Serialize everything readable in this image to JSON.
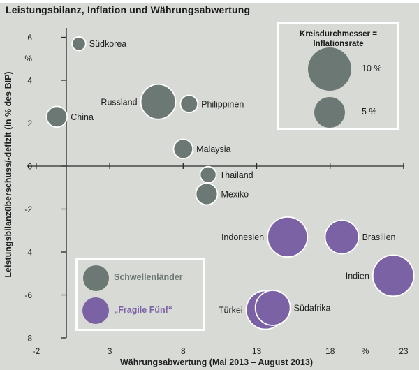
{
  "page": {
    "title": "Leistungsbilanz, Inflation und Währungsabwertung"
  },
  "colors": {
    "background": "#d8dad6",
    "bubble_gray": "#6c7873",
    "bubble_purple": "#7b62a5",
    "axis": "#2a2a2a",
    "text": "#1f1f1f",
    "legend_border": "#ffffff"
  },
  "chart_data": {
    "type": "scatter",
    "title": "Leistungsbilanz, Inflation und Währungsabwertung",
    "xlabel": "Währungsabwertung (Mai 2013 – August 2013)",
    "ylabel": "Leistungsbilanzüberschuss/-defizit (in % des BIP)",
    "x_unit": "%",
    "y_unit": "%",
    "xticks": [
      -2,
      3,
      8,
      13,
      18,
      23
    ],
    "yticks": [
      6,
      4,
      2,
      0,
      -2,
      -4,
      -6,
      -8
    ],
    "xlim": [
      -2.7,
      23.1
    ],
    "ylim": [
      -8,
      6.4
    ],
    "grid": false,
    "bubble_size_meaning": "Kreisdurchmesser = Inflationsrate (in %)",
    "series": [
      {
        "name": "Schwellenländer",
        "color": "#6c7873",
        "points": [
          {
            "label": "Südkorea",
            "x": 0.9,
            "y": 5.7,
            "inflation": 1.0,
            "label_side": "right"
          },
          {
            "label": "China",
            "x": -0.6,
            "y": 2.3,
            "inflation": 2.3,
            "label_side": "right"
          },
          {
            "label": "Russland",
            "x": 6.3,
            "y": 3.0,
            "inflation": 6.5,
            "label_side": "left"
          },
          {
            "label": "Philippinen",
            "x": 8.4,
            "y": 2.9,
            "inflation": 1.6,
            "label_side": "right"
          },
          {
            "label": "Malaysia",
            "x": 8.0,
            "y": 0.8,
            "inflation": 2.0,
            "label_side": "right"
          },
          {
            "label": "Thailand",
            "x": 9.7,
            "y": -0.4,
            "inflation": 1.4,
            "label_side": "right"
          },
          {
            "label": "Mexiko",
            "x": 9.6,
            "y": -1.3,
            "inflation": 2.5,
            "label_side": "right"
          }
        ]
      },
      {
        "name": "„Fragile Fünf“",
        "color": "#7b62a5",
        "points": [
          {
            "label": "Indonesien",
            "x": 15.1,
            "y": -3.3,
            "inflation": 8.5,
            "label_side": "left"
          },
          {
            "label": "Brasilien",
            "x": 18.8,
            "y": -3.3,
            "inflation": 6.0,
            "label_side": "right"
          },
          {
            "label": "Indien",
            "x": 22.3,
            "y": -5.1,
            "inflation": 9.0,
            "label_side": "left"
          },
          {
            "label": "Türkei",
            "x": 13.6,
            "y": -6.7,
            "inflation": 7.9,
            "label_side": "left"
          },
          {
            "label": "Südafrika",
            "x": 14.1,
            "y": -6.6,
            "inflation": 6.5,
            "label_side": "right"
          }
        ]
      }
    ],
    "size_legend": {
      "title_line1": "Kreisdurchmesser =",
      "title_line2": "Inflationsrate",
      "entries": [
        {
          "label": "10 %",
          "value": 10
        },
        {
          "label": "5 %",
          "value": 5
        }
      ]
    },
    "series_legend": {
      "entries": [
        {
          "label": "Schwellenländer"
        },
        {
          "label": "„Fragile Fünf“"
        }
      ]
    }
  }
}
